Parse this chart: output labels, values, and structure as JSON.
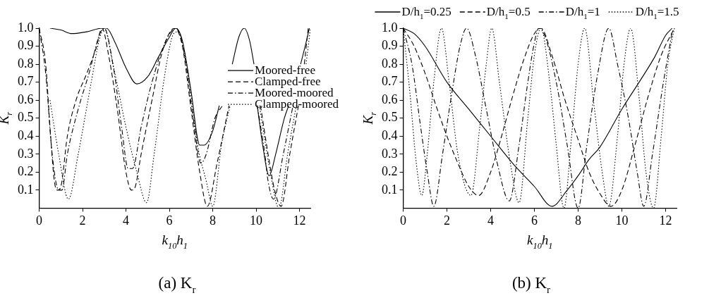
{
  "chart_data": [
    {
      "type": "line",
      "title": "(a) K$_{r}$",
      "xlabel": "k$_{10}$h$_{1}$",
      "ylabel": "K$_{r}$",
      "xlim": [
        0,
        12.5
      ],
      "xticks": [
        0,
        2,
        4,
        6,
        8,
        10,
        12
      ],
      "ylim": [
        0,
        1
      ],
      "yticks": [
        0.1,
        0.2,
        0.3,
        0.4,
        0.5,
        0.6,
        0.7,
        0.8,
        0.9,
        {
          "value": 1,
          "label": "1.0"
        }
      ],
      "grid": false,
      "legend": "right",
      "marker": "none",
      "series": [
        {
          "name": "Moored-free",
          "color": "#000000",
          "line_style": "solid",
          "x": [
            0.5,
            1.0,
            1.5,
            2.2,
            2.9,
            3.1,
            3.5,
            4.0,
            4.5,
            5.0,
            5.5,
            6.0,
            6.3,
            6.6,
            7.0,
            7.4,
            7.6,
            8.0,
            8.3,
            8.6,
            8.9,
            9.2,
            9.45,
            9.7,
            9.9,
            9.95,
            10.05,
            10.3,
            10.6,
            10.9,
            11.3,
            11.5,
            11.8,
            12.05,
            12.3,
            12.45
          ],
          "values": [
            1.0,
            0.99,
            0.97,
            0.98,
            1.0,
            1.0,
            0.92,
            0.78,
            0.69,
            0.73,
            0.84,
            0.95,
            1.0,
            0.93,
            0.65,
            0.35,
            0.35,
            0.43,
            0.57,
            null,
            0.8,
            0.95,
            1.0,
            0.93,
            0.8,
            null,
            0.57,
            0.35,
            0.18,
            0.3,
            0.5,
            0.57,
            null,
            0.8,
            0.92,
            1.0
          ]
        },
        {
          "name": "Clamped-free",
          "color": "#000000",
          "line_style": "dashed",
          "x": [
            0,
            0.3,
            0.5,
            0.7,
            0.85,
            1.0,
            1.3,
            1.7,
            2.2,
            2.6,
            2.9,
            3.2,
            3.6,
            4.0,
            4.25,
            4.4,
            4.7,
            5.2,
            5.7,
            6.25,
            6.6,
            7.0,
            7.4,
            7.75,
            8.2,
            8.75,
            9.4,
            10.2,
            10.55,
            10.85,
            11.15,
            11.55,
            11.95,
            12.05,
            12.22,
            12.4
          ],
          "values": [
            1.0,
            0.8,
            0.45,
            0.15,
            0.1,
            0.12,
            0.4,
            0.6,
            0.75,
            0.88,
            1.0,
            0.85,
            0.55,
            0.2,
            0.1,
            0.11,
            0.3,
            0.6,
            0.88,
            1.0,
            0.9,
            0.55,
            0.2,
            0.01,
            0.25,
            0.57,
            null,
            0.57,
            0.3,
            0.1,
            0.01,
            0.3,
            0.57,
            null,
            0.8,
            1.0
          ]
        },
        {
          "name": "Moored-moored",
          "color": "#000000",
          "line_style": "dashdot",
          "x": [
            0,
            0.3,
            0.6,
            0.9,
            1.05,
            1.3,
            1.8,
            2.3,
            2.8,
            3.0,
            3.4,
            3.8,
            4.1,
            4.3,
            4.7,
            5.2,
            5.8,
            6.3,
            6.7,
            7.1,
            7.45,
            7.7,
            8.1,
            8.45,
            9.4,
            10.05,
            10.4,
            10.55,
            10.8,
            11.25,
            11.7
          ],
          "values": [
            1.0,
            0.75,
            0.3,
            0.1,
            0.1,
            0.3,
            0.55,
            0.75,
            0.97,
            1.0,
            0.8,
            0.45,
            0.22,
            0.22,
            0.45,
            0.7,
            0.92,
            1.0,
            0.85,
            0.5,
            0.25,
            0.3,
            0.5,
            0.57,
            null,
            0.57,
            0.3,
            0.15,
            0.05,
            0.3,
            0.57
          ]
        },
        {
          "name": "Clamped-moored",
          "color": "#000000",
          "line_style": "dotted",
          "x": [
            0.5,
            0.9,
            1.35,
            1.8,
            2.4,
            2.8,
            3.0,
            3.4,
            4.0,
            4.5,
            4.95,
            5.3,
            5.8,
            6.2,
            6.4,
            6.8,
            7.3,
            7.7,
            8.0,
            8.4,
            8.8,
            9.4,
            10.15,
            10.65,
            11.05,
            11.45,
            11.85,
            11.95,
            12.3,
            12.5
          ],
          "values": [
            0.6,
            0.3,
            0.05,
            0.3,
            0.7,
            0.95,
            1.0,
            0.8,
            0.45,
            0.2,
            0.03,
            0.3,
            0.75,
            0.97,
            0.98,
            0.8,
            0.35,
            0.15,
            0.01,
            0.35,
            0.57,
            null,
            0.57,
            0.2,
            0.0,
            0.3,
            0.57,
            null,
            0.8,
            1.0
          ]
        }
      ]
    },
    {
      "type": "line",
      "title": "(b) K$_{r}$",
      "xlabel": "k$_{10}$h$_{1}$",
      "ylabel": "K$_{r}$",
      "xlim": [
        0,
        12.5
      ],
      "xticks": [
        0,
        2,
        4,
        6,
        8,
        10,
        12
      ],
      "ylim": [
        0,
        1
      ],
      "yticks": [
        0.1,
        0.2,
        0.3,
        0.4,
        0.5,
        0.6,
        0.7,
        0.8,
        0.9,
        {
          "value": 1,
          "label": "1.0"
        }
      ],
      "grid": false,
      "legend": "top",
      "marker": "none",
      "series": [
        {
          "name": "D/h$_{1}$=0.25",
          "color": "#000000",
          "line_style": "solid",
          "x": [
            0,
            0.5,
            1,
            2,
            3,
            4,
            5,
            6,
            6.8,
            7.5,
            8,
            8.5,
            9,
            10,
            11,
            11.5,
            12,
            12.3
          ],
          "values": [
            1.0,
            0.97,
            0.9,
            0.7,
            0.55,
            0.4,
            0.25,
            0.12,
            0.01,
            0.1,
            0.18,
            0.27,
            0.34,
            0.55,
            0.74,
            0.84,
            0.96,
            1.0
          ]
        },
        {
          "name": "D/h$_{1}$=0.5",
          "color": "#000000",
          "line_style": "dashed",
          "x": [
            0,
            0.5,
            1,
            1.5,
            2,
            2.5,
            3,
            3.45,
            4,
            4.5,
            5,
            5.5,
            6,
            6.3,
            6.8,
            7.4,
            8,
            8.5,
            9,
            9.5,
            10,
            10.6,
            11.2,
            11.8,
            12.4
          ],
          "values": [
            1.0,
            0.9,
            0.75,
            0.57,
            0.4,
            0.25,
            0.12,
            0.07,
            0.2,
            0.4,
            0.62,
            0.82,
            0.97,
            1.0,
            0.85,
            0.6,
            0.38,
            0.2,
            0.08,
            0.01,
            0.1,
            0.35,
            0.62,
            0.85,
            1.0
          ]
        },
        {
          "name": "D/h$_{1}$=1",
          "color": "#000000",
          "line_style": "dashdot",
          "x": [
            0,
            0.4,
            0.8,
            1.1,
            1.4,
            1.8,
            2.2,
            2.6,
            2.9,
            3.3,
            3.8,
            4.3,
            4.85,
            5.3,
            5.7,
            6.0,
            6.2,
            6.5,
            7.0,
            7.5,
            8.0,
            8.4,
            8.9,
            9.4,
            9.8,
            10.3,
            10.7,
            11.0,
            11.4,
            11.9,
            12.3
          ],
          "values": [
            1.0,
            0.8,
            0.45,
            0.2,
            0.01,
            0.3,
            0.62,
            0.9,
            1.0,
            0.85,
            0.55,
            0.25,
            0.04,
            0.35,
            0.7,
            0.92,
            1.0,
            0.95,
            0.7,
            0.35,
            0.0,
            0.35,
            0.75,
            1.0,
            0.8,
            0.5,
            0.2,
            0.01,
            0.3,
            0.7,
            0.98
          ]
        },
        {
          "name": "D/h$_{1}$=1.5",
          "color": "#000000",
          "line_style": "dotted",
          "x": [
            0,
            0.3,
            0.6,
            0.85,
            1.1,
            1.4,
            1.75,
            2.1,
            2.5,
            3.1,
            3.5,
            3.8,
            4.05,
            4.4,
            4.9,
            5.3,
            5.7,
            6.0,
            6.3,
            6.7,
            7.0,
            7.35,
            7.7,
            8.0,
            8.3,
            8.7,
            9.1,
            9.4,
            9.8,
            10.1,
            10.4,
            10.8,
            11.1,
            11.45,
            11.8,
            12.1,
            12.4
          ],
          "values": [
            1.0,
            0.65,
            0.25,
            0.07,
            0.3,
            0.7,
            1.0,
            0.7,
            0.3,
            0.07,
            0.45,
            0.8,
            1.0,
            0.7,
            0.25,
            0.03,
            0.5,
            0.85,
            1.0,
            0.7,
            0.35,
            0.0,
            0.4,
            0.8,
            1.0,
            0.6,
            0.2,
            0.01,
            0.4,
            0.8,
            1.0,
            0.6,
            0.2,
            0.0,
            0.4,
            0.8,
            1.0
          ]
        }
      ]
    }
  ]
}
